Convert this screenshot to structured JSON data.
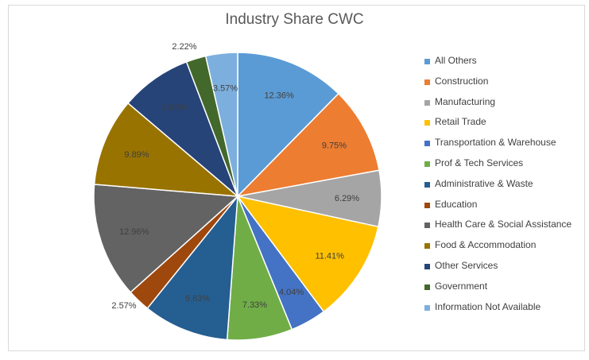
{
  "chart_data": {
    "type": "pie",
    "title": "Industry Share CWC",
    "categories": [
      "All Others",
      "Construction",
      "Manufacturing",
      "Retail Trade",
      "Transportation & Warehouse",
      "Prof & Tech Services",
      "Administrative & Waste",
      "Education",
      "Health Care & Social Assistance",
      "Food & Accommodation",
      "Other Services",
      "Government",
      "Information Not Available"
    ],
    "values": [
      12.36,
      9.75,
      6.29,
      11.41,
      4.04,
      7.33,
      9.63,
      2.57,
      12.96,
      9.89,
      8.0,
      2.22,
      3.57
    ],
    "labels": [
      "12.36%",
      "9.75%",
      "6.29%",
      "11.41%",
      "4.04%",
      "7.33%",
      "9.63%",
      "2.57%",
      "12.96%",
      "9.89%",
      "8.00%",
      "2.22%",
      "3.57%"
    ],
    "colors": [
      "#5B9BD5",
      "#ED7D31",
      "#A5A5A5",
      "#FFC000",
      "#4472C4",
      "#70AD47",
      "#255E91",
      "#9E480E",
      "#636363",
      "#997300",
      "#264478",
      "#43682B",
      "#7CAFDD"
    ],
    "legend_position": "right"
  }
}
